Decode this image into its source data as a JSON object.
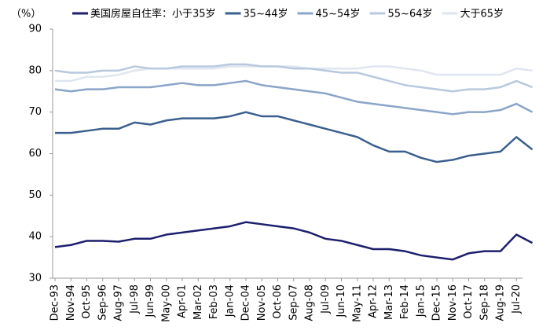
{
  "chart_data": {
    "type": "line",
    "y_unit_label": "（%）",
    "categories": [
      "Dec-93",
      "Nov-94",
      "Oct-95",
      "Sep-96",
      "Aug-97",
      "Jul-98",
      "Jun-99",
      "May-00",
      "Apr-01",
      "Mar-02",
      "Feb-03",
      "Jan-04",
      "Dec-04",
      "Nov-05",
      "Oct-06",
      "Sep-07",
      "Aug-08",
      "Jul-09",
      "Jun-10",
      "May-11",
      "Apr-12",
      "Mar-13",
      "Feb-14",
      "Jan-15",
      "Dec-15",
      "Nov-16",
      "Oct-17",
      "Sep-18",
      "Aug-19",
      "Jul-20",
      null
    ],
    "series": [
      {
        "name": "美国房屋自住率：小于35岁",
        "color": "#1c1f6e",
        "values": [
          37.5,
          38,
          39,
          39,
          38.8,
          39.5,
          39.5,
          40.5,
          41,
          41.5,
          42,
          42.5,
          43.5,
          43,
          42.5,
          42,
          41,
          39.5,
          39,
          38,
          37,
          37,
          36.5,
          35.5,
          35,
          34.5,
          36,
          36.5,
          36.5,
          40.5,
          38.5
        ]
      },
      {
        "name": "35~44岁",
        "color": "#3b5f8f",
        "values": [
          65,
          65,
          65.5,
          66,
          66,
          67.5,
          67,
          68,
          68.5,
          68.5,
          68.5,
          69,
          70,
          69,
          69,
          68,
          67,
          66,
          65,
          64,
          62,
          60.5,
          60.5,
          59,
          58,
          58.5,
          59.5,
          60,
          60.5,
          64,
          61
        ]
      },
      {
        "name": "45~54岁",
        "color": "#8aa5c8",
        "values": [
          75.5,
          75,
          75.5,
          75.5,
          76,
          76,
          76,
          76.5,
          77,
          76.5,
          76.5,
          77,
          77.5,
          76.5,
          76,
          75.5,
          75,
          74.5,
          73.5,
          72.5,
          72,
          71.5,
          71,
          70.5,
          70,
          69.5,
          70,
          70,
          70.5,
          72,
          70
        ]
      },
      {
        "name": "55~64岁",
        "color": "#b8c8de",
        "values": [
          80,
          79.5,
          79.5,
          80,
          80,
          81,
          80.5,
          80.5,
          81,
          81,
          81,
          81.5,
          81.5,
          81,
          81,
          80.5,
          80.5,
          80,
          79.5,
          79.5,
          78.5,
          77.5,
          76.5,
          76,
          75.5,
          75,
          75.5,
          75.5,
          76,
          77.5,
          76
        ]
      },
      {
        "name": "大于65岁",
        "color": "#dfe6f0",
        "values": [
          77.5,
          77.5,
          78.5,
          78.5,
          79,
          80,
          80.5,
          80.5,
          80.5,
          80.5,
          80.5,
          81,
          81,
          81,
          81,
          81,
          80.5,
          80.5,
          80.5,
          80.5,
          81,
          81,
          80.5,
          80,
          79,
          79,
          79,
          79,
          79,
          80.5,
          80
        ]
      }
    ],
    "ylim": [
      30,
      90
    ],
    "yticks": [
      30,
      40,
      50,
      60,
      70,
      80,
      90
    ]
  }
}
